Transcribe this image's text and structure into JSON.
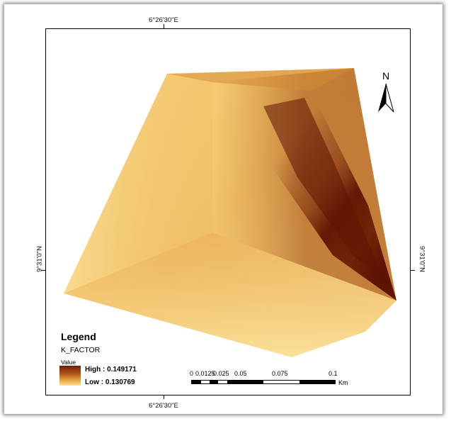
{
  "map": {
    "coords": {
      "top": "6°26'30\"E",
      "bottom": "6°26'30\"E",
      "left": "9°31'0\"N",
      "right": "9°31'0\"N"
    },
    "north_label": "N",
    "colors": {
      "high": "#5e1403",
      "mid": "#c9761f",
      "low": "#fce39a",
      "frame": "#000000"
    }
  },
  "legend": {
    "title": "Legend",
    "layer": "K_FACTOR",
    "value_heading": "Value",
    "high_label": "High : 0.149171",
    "low_label": "Low : 0.130769"
  },
  "scale_bar": {
    "labels": [
      "0",
      "0.0125",
      "0.025",
      "0.05",
      "0.075",
      "0.1"
    ],
    "unit": "Km"
  }
}
